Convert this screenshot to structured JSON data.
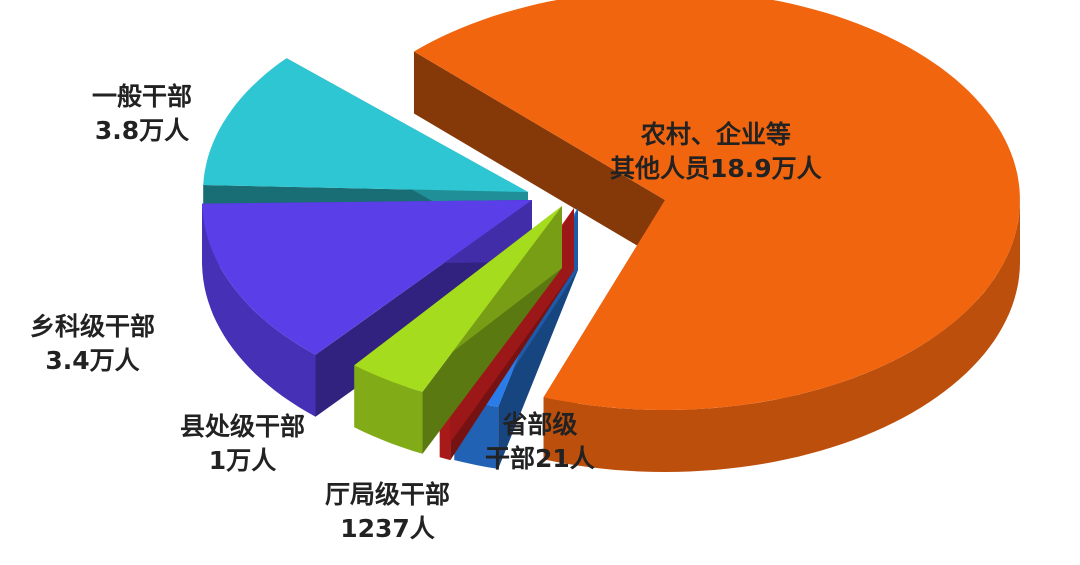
{
  "chart_data": {
    "type": "pie",
    "title": "",
    "slices": [
      {
        "label": "农村、企业等其他人员",
        "line1": "农村、企业等",
        "line2": "其他人员18.9万人",
        "value": 189000,
        "display": "18.9万人",
        "color": "#f2650f"
      },
      {
        "label": "一般干部",
        "line1": "一般干部",
        "line2": "3.8万人",
        "value": 38000,
        "display": "3.8万人",
        "color": "#2ec6d2"
      },
      {
        "label": "乡科级干部",
        "line1": "乡科级干部",
        "line2": "3.4万人",
        "value": 34000,
        "display": "3.4万人",
        "color": "#5a3ee8"
      },
      {
        "label": "县处级干部",
        "line1": "县处级干部",
        "line2": "1万人",
        "value": 10000,
        "display": "1万人",
        "color": "#a6dc1e"
      },
      {
        "label": "厅局级干部",
        "line1": "厅局级干部",
        "line2": "1237人",
        "value": 1237,
        "display": "1237人",
        "color": "#2a7de8"
      },
      {
        "label": "省部级干部",
        "line1": "省部级",
        "line2": "干部21人",
        "value": 21,
        "display": "21人",
        "color": "#d82020"
      }
    ],
    "style": "3d-exploded"
  }
}
